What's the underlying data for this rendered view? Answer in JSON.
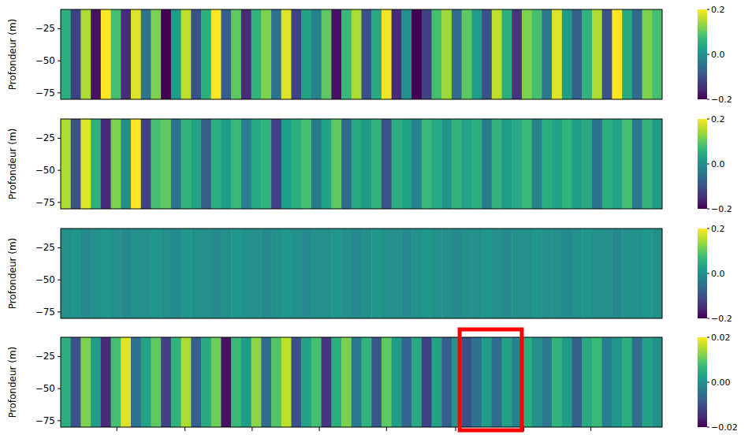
{
  "chart_data": [
    {
      "type": "heatmap",
      "y_label": "Profondeur (m)",
      "xlim": [
        0,
        60
      ],
      "ylim": [
        -80,
        -10
      ],
      "yticks": [
        {
          "value": -25,
          "label": "−25"
        },
        {
          "value": -50,
          "label": "−50"
        },
        {
          "value": -75,
          "label": "−75"
        }
      ],
      "tick_labels": "y",
      "cells": [
        [
          0.05,
          -0.12,
          0.15,
          -0.18,
          0.2,
          0.08,
          -0.15,
          0.18,
          -0.05,
          0.12,
          -0.2,
          0.02,
          0.16,
          -0.1,
          0.05,
          0.2,
          -0.08,
          0.1,
          -0.15,
          0.06,
          0.12,
          -0.05,
          0.18,
          -0.12,
          0.03,
          -0.02,
          0.1,
          -0.18,
          0.07,
          0.15,
          -0.1,
          0.04,
          0.19,
          -0.15,
          0.0,
          -0.2,
          -0.12,
          0.08,
          0.14,
          -0.06,
          0.1,
          0.02,
          -0.1,
          0.16,
          0.05,
          -0.14,
          0.12,
          0.08,
          -0.04,
          0.18,
          0.02,
          -0.08,
          0.06,
          0.15,
          -0.1,
          0.2,
          0.04,
          -0.06,
          0.12,
          0.08
        ]
      ],
      "colorbar": {
        "range": [
          -0.2,
          0.2
        ],
        "ticks": [
          0.2,
          {
            "value": 0,
            "label": "0.0"
          },
          {
            "value": -0.2,
            "label": "−0.2"
          }
        ]
      }
    },
    {
      "type": "heatmap",
      "y_label": "Profondeur (m)",
      "xlim": [
        0,
        60
      ],
      "ylim": [
        -80,
        -10
      ],
      "yticks": [
        {
          "value": -25,
          "label": "−25"
        },
        {
          "value": -50,
          "label": "−50"
        },
        {
          "value": -75,
          "label": "−75"
        }
      ],
      "tick_labels": "y",
      "cells": [
        [
          0.15,
          -0.1,
          0.18,
          0.05,
          -0.15,
          0.12,
          0.0,
          0.2,
          -0.12,
          0.08,
          0.1,
          -0.05,
          0.06,
          0.03,
          -0.08,
          0.05,
          0.02,
          0.07,
          -0.03,
          0.04,
          0.06,
          -0.12,
          0.02,
          0.05,
          0.08,
          -0.04,
          0.03,
          0.1,
          -0.06,
          0.04,
          0.02,
          0.06,
          -0.1,
          0.05,
          0.03,
          -0.02,
          0.07,
          0.04,
          0.01,
          0.06,
          0.03,
          0.05,
          -0.03,
          0.06,
          0.02,
          0.04,
          0.07,
          -0.02,
          0.05,
          0.03,
          0.06,
          0.02,
          0.04,
          -0.05,
          0.05,
          0.03,
          0.08,
          -0.04,
          0.06,
          0.02
        ]
      ],
      "colorbar": {
        "range": [
          -0.2,
          0.2
        ],
        "ticks": [
          0.2,
          {
            "value": 0,
            "label": "0.0"
          },
          {
            "value": -0.2,
            "label": "−0.2"
          }
        ]
      }
    },
    {
      "type": "heatmap",
      "y_label": "Profondeur (m)",
      "xlim": [
        0,
        60
      ],
      "ylim": [
        -80,
        -10
      ],
      "yticks": [
        {
          "value": -25,
          "label": "−25"
        },
        {
          "value": -50,
          "label": "−50"
        },
        {
          "value": -75,
          "label": "−75"
        }
      ],
      "tick_labels": "y",
      "cells": [
        [
          0.0,
          0.01,
          -0.01,
          0.0,
          0.01,
          0.0,
          -0.01,
          0.0,
          0.0,
          0.01,
          0.0,
          -0.01,
          0.01,
          0.0,
          0.0,
          -0.01,
          0.0,
          0.01,
          0.0,
          0.0,
          -0.01,
          0.0,
          0.01,
          0.0,
          -0.01,
          0.0,
          0.0,
          0.01,
          0.0,
          -0.01,
          0.0,
          0.01,
          0.0,
          0.0,
          -0.01,
          0.0,
          0.01,
          0.0,
          0.0,
          -0.01,
          0.0,
          0.0,
          0.01,
          0.0,
          -0.01,
          0.0,
          0.0,
          0.01,
          0.0,
          0.0,
          -0.01,
          0.0,
          0.01,
          0.0,
          0.0,
          -0.01,
          0.0,
          0.0,
          0.01,
          0.0
        ]
      ],
      "colorbar": {
        "range": [
          -0.2,
          0.2
        ],
        "ticks": [
          0.2,
          {
            "value": 0,
            "label": "0.0"
          },
          {
            "value": -0.2,
            "label": "−0.2"
          }
        ]
      }
    },
    {
      "type": "heatmap",
      "y_label": "Profondeur (m)",
      "xlim": [
        0,
        60
      ],
      "ylim": [
        -80,
        -10
      ],
      "yticks": [
        {
          "value": -25,
          "label": "−25"
        },
        {
          "value": -50,
          "label": "−50"
        },
        {
          "value": -75,
          "label": "−75"
        }
      ],
      "xticks": [
        5.6,
        12.4,
        19.1,
        25.8,
        32.5,
        39.4,
        46.2,
        52.9
      ],
      "tick_labels": "y",
      "cells": [
        [
          0.005,
          -0.01,
          0.012,
          0.002,
          -0.015,
          0.008,
          0.018,
          -0.005,
          0.003,
          0.01,
          -0.012,
          0.006,
          0.015,
          -0.008,
          0.004,
          0.011,
          -0.018,
          0.007,
          0.002,
          0.013,
          -0.006,
          0.009,
          0.016,
          -0.01,
          0.003,
          0.008,
          -0.014,
          0.005,
          0.012,
          -0.004,
          0.006,
          -0.009,
          0.01,
          0.002,
          -0.007,
          0.004,
          -0.012,
          0.003,
          -0.008,
          0.001,
          -0.01,
          -0.005,
          0.002,
          -0.006,
          0.003,
          -0.002,
          0.005,
          0.0,
          -0.004,
          0.006,
          0.002,
          -0.008,
          0.004,
          0.007,
          -0.003,
          0.001,
          0.005,
          -0.006,
          0.003,
          0.0
        ]
      ],
      "colorbar": {
        "range": [
          -0.02,
          0.02
        ],
        "ticks": [
          0.02,
          {
            "value": 0,
            "label": "0.00"
          },
          {
            "value": -0.02,
            "label": "−0.02"
          }
        ]
      },
      "annotations": [
        {
          "type": "rect",
          "x": [
            39.8,
            46.0
          ],
          "color": "#ff0000"
        }
      ]
    }
  ]
}
